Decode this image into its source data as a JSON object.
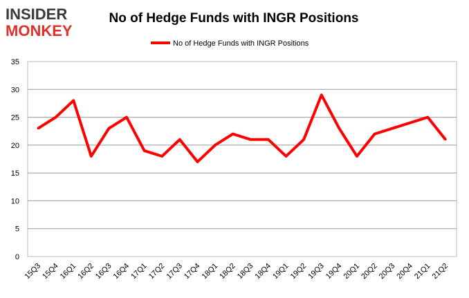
{
  "logo": {
    "line1": "INSIDER",
    "line2": "MONKEY"
  },
  "chart_data": {
    "type": "line",
    "title": "No of Hedge Funds with INGR Positions",
    "xlabel": "",
    "ylabel": "",
    "categories": [
      "15Q3",
      "15Q4",
      "16Q1",
      "16Q2",
      "16Q3",
      "16Q4",
      "17Q1",
      "17Q2",
      "17Q3",
      "17Q4",
      "18Q1",
      "18Q2",
      "18Q3",
      "18Q4",
      "19Q1",
      "19Q2",
      "19Q3",
      "19Q4",
      "20Q1",
      "20Q2",
      "20Q3",
      "20Q4",
      "21Q1",
      "21Q2"
    ],
    "series": [
      {
        "name": "No of Hedge Funds with INGR Positions",
        "values": [
          23,
          25,
          28,
          18,
          23,
          25,
          19,
          18,
          21,
          17,
          20,
          22,
          21,
          21,
          18,
          21,
          29,
          23,
          18,
          22,
          23,
          24,
          25,
          21
        ],
        "color": "#ff0000"
      }
    ],
    "ylim": [
      0,
      35
    ],
    "yticks": [
      0,
      5,
      10,
      15,
      20,
      25,
      30,
      35
    ],
    "grid": true,
    "legend": "top-center"
  }
}
